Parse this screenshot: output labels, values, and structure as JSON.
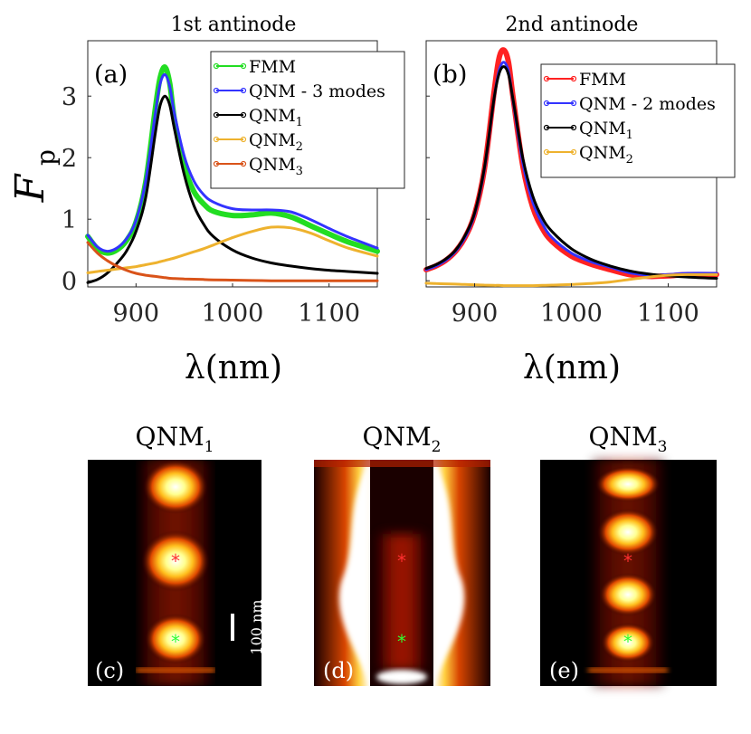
{
  "chart_data": [
    {
      "type": "line",
      "panel_label": "(a)",
      "title": "1st antinode",
      "xlabel": "λ(nm)",
      "ylabel_main": "F",
      "ylabel_sub": "p",
      "xlim": [
        850,
        1150
      ],
      "ylim": [
        -0.1,
        3.9
      ],
      "xticks": [
        900,
        1000,
        1100
      ],
      "yticks": [
        0,
        1,
        2,
        3
      ],
      "x": [
        850,
        860,
        870,
        880,
        890,
        900,
        910,
        920,
        925,
        930,
        935,
        940,
        950,
        960,
        970,
        980,
        1000,
        1020,
        1040,
        1060,
        1080,
        1100,
        1120,
        1150
      ],
      "series": [
        {
          "name": "FMM",
          "label_main": "FMM",
          "label_sub": "",
          "color": "#22dd22",
          "width": 6,
          "values": [
            0.72,
            0.52,
            0.45,
            0.5,
            0.65,
            0.95,
            1.6,
            2.8,
            3.3,
            3.47,
            3.2,
            2.6,
            1.85,
            1.45,
            1.25,
            1.13,
            1.06,
            1.07,
            1.1,
            1.04,
            0.9,
            0.76,
            0.63,
            0.48
          ]
        },
        {
          "name": "QNM - 3 modes",
          "label_main": "QNM - 3 modes",
          "label_sub": "",
          "color": "#3333ff",
          "width": 3,
          "values": [
            0.74,
            0.55,
            0.48,
            0.53,
            0.68,
            0.98,
            1.62,
            2.72,
            3.2,
            3.35,
            3.15,
            2.7,
            2.02,
            1.62,
            1.4,
            1.28,
            1.17,
            1.15,
            1.15,
            1.12,
            1.0,
            0.85,
            0.71,
            0.53
          ]
        },
        {
          "name": "QNM1",
          "label_main": "QNM",
          "label_sub": "1",
          "color": "#000000",
          "width": 3,
          "values": [
            -0.03,
            0.02,
            0.12,
            0.28,
            0.48,
            0.8,
            1.35,
            2.4,
            2.85,
            3.0,
            2.85,
            2.45,
            1.72,
            1.22,
            0.92,
            0.72,
            0.5,
            0.37,
            0.29,
            0.24,
            0.2,
            0.17,
            0.15,
            0.12
          ]
        },
        {
          "name": "QNM2",
          "label_main": "QNM",
          "label_sub": "2",
          "color": "#eeb22e",
          "width": 3,
          "values": [
            0.13,
            0.15,
            0.17,
            0.19,
            0.21,
            0.23,
            0.26,
            0.29,
            0.31,
            0.33,
            0.35,
            0.37,
            0.42,
            0.47,
            0.52,
            0.58,
            0.7,
            0.8,
            0.87,
            0.86,
            0.78,
            0.65,
            0.53,
            0.4
          ]
        },
        {
          "name": "QNM3",
          "label_main": "QNM",
          "label_sub": "3",
          "color": "#d95319",
          "width": 3,
          "values": [
            0.62,
            0.45,
            0.33,
            0.24,
            0.17,
            0.12,
            0.09,
            0.07,
            0.06,
            0.05,
            0.04,
            0.035,
            0.03,
            0.025,
            0.02,
            0.015,
            0.01,
            0.005,
            0.0,
            0.0,
            0.0,
            0.0,
            0.0,
            0.0
          ]
        }
      ]
    },
    {
      "type": "line",
      "panel_label": "(b)",
      "title": "2nd antinode",
      "xlabel": "λ(nm)",
      "xlim": [
        850,
        1150
      ],
      "ylim": [
        -0.1,
        3.9
      ],
      "xticks": [
        900,
        1000,
        1100
      ],
      "yticks": [
        0,
        1,
        2,
        3
      ],
      "x": [
        850,
        860,
        870,
        880,
        890,
        900,
        910,
        920,
        925,
        930,
        935,
        940,
        950,
        960,
        970,
        980,
        1000,
        1020,
        1040,
        1060,
        1080,
        1100,
        1120,
        1150
      ],
      "series": [
        {
          "name": "FMM",
          "label_main": "FMM",
          "label_sub": "",
          "color": "#ff2222",
          "width": 6,
          "values": [
            0.18,
            0.24,
            0.33,
            0.47,
            0.7,
            1.08,
            1.8,
            3.05,
            3.6,
            3.75,
            3.55,
            2.95,
            1.85,
            1.2,
            0.85,
            0.64,
            0.4,
            0.27,
            0.18,
            0.1,
            0.07,
            0.08,
            0.1,
            0.1
          ]
        },
        {
          "name": "QNM - 2 modes",
          "label_main": "QNM - 2 modes",
          "label_sub": "",
          "color": "#3333ff",
          "width": 3,
          "values": [
            0.18,
            0.24,
            0.33,
            0.47,
            0.7,
            1.08,
            1.8,
            2.95,
            3.4,
            3.55,
            3.4,
            2.9,
            1.9,
            1.28,
            0.93,
            0.7,
            0.45,
            0.31,
            0.22,
            0.13,
            0.09,
            0.1,
            0.12,
            0.12
          ]
        },
        {
          "name": "QNM1",
          "label_main": "QNM",
          "label_sub": "1",
          "color": "#000000",
          "width": 3,
          "values": [
            0.2,
            0.26,
            0.35,
            0.49,
            0.73,
            1.1,
            1.82,
            2.95,
            3.35,
            3.48,
            3.35,
            2.92,
            1.98,
            1.38,
            1.02,
            0.8,
            0.52,
            0.35,
            0.24,
            0.16,
            0.11,
            0.08,
            0.06,
            0.04
          ]
        },
        {
          "name": "QNM2",
          "label_main": "QNM",
          "label_sub": "2",
          "color": "#eeb22e",
          "width": 3,
          "values": [
            -0.04,
            -0.045,
            -0.05,
            -0.055,
            -0.06,
            -0.065,
            -0.07,
            -0.075,
            -0.075,
            -0.08,
            -0.08,
            -0.08,
            -0.08,
            -0.08,
            -0.075,
            -0.07,
            -0.06,
            -0.045,
            -0.02,
            0.02,
            0.06,
            0.09,
            0.1,
            0.1
          ]
        }
      ]
    }
  ],
  "field_maps": [
    {
      "title_main": "QNM",
      "title_sub": "1",
      "label": "(c)",
      "scale_bar": "100 nm"
    },
    {
      "title_main": "QNM",
      "title_sub": "2",
      "label": "(d)"
    },
    {
      "title_main": "QNM",
      "title_sub": "3",
      "label": "(e)"
    }
  ],
  "colors": {
    "red_star": "#ff3030",
    "green_star": "#30ff30"
  }
}
